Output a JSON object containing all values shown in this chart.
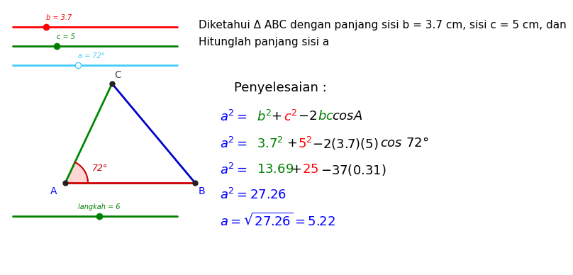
{
  "bg_color": "#ffffff",
  "title_line1": "Diketahui Δ ABC dengan panjang sisi b = 3.7 cm, sisi c = 5 cm, dan",
  "title_line2": "Hitunglah panjang sisi a",
  "slider1_label": "b = 3.7",
  "slider2_label": "c = 5",
  "slider3_label": "a = 72°",
  "slider4_label": "langkah = 6",
  "slider1_color": "#ff0000",
  "slider2_color": "#008000",
  "slider3_color": "#44ccff",
  "slider4_color": "#008000",
  "penyelesaian_label": "Penyelesaian :",
  "font_size_title": 11,
  "font_size_eq": 13,
  "font_size_slider": 7
}
